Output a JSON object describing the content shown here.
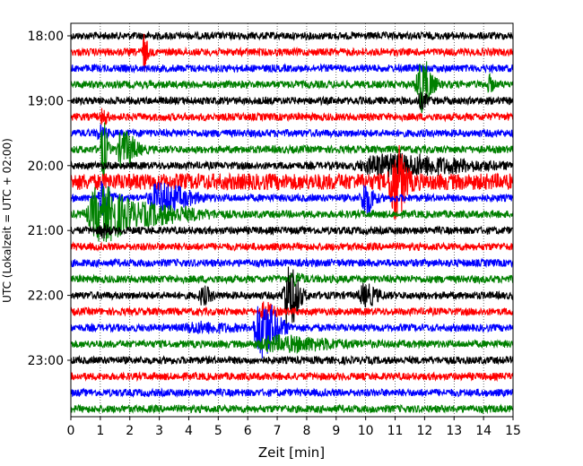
{
  "chart_data": {
    "type": "line",
    "title": "",
    "xlabel": "Zeit  [min]",
    "ylabel": "UTC (Lokalzeit = UTC + 02:00)",
    "xlim": [
      0,
      15
    ],
    "x_ticks": [
      0,
      1,
      2,
      3,
      4,
      5,
      6,
      7,
      8,
      9,
      10,
      11,
      12,
      13,
      14,
      15
    ],
    "y_tick_labels": [
      "18:00",
      "19:00",
      "20:00",
      "21:00",
      "22:00",
      "23:00"
    ],
    "trace_colors": [
      "#000000",
      "#ff0000",
      "#0000ff",
      "#008000"
    ],
    "grid": "vertical dotted at each minute",
    "row_interval_min": 15,
    "rows": [
      {
        "start": "18:00",
        "color": "#000000",
        "events": []
      },
      {
        "start": "18:15",
        "color": "#ff0000",
        "events": [
          {
            "t": 2.5,
            "amp": 1.5,
            "dur": 0.15
          }
        ]
      },
      {
        "start": "18:30",
        "color": "#0000ff",
        "events": []
      },
      {
        "start": "18:45",
        "color": "#008000",
        "events": [
          {
            "t": 11.9,
            "amp": 2.2,
            "dur": 0.5
          },
          {
            "t": 14.2,
            "amp": 0.6,
            "dur": 0.2
          }
        ]
      },
      {
        "start": "19:00",
        "color": "#000000",
        "events": [
          {
            "t": 11.9,
            "amp": 0.5,
            "dur": 0.3
          }
        ]
      },
      {
        "start": "19:15",
        "color": "#ff0000",
        "events": [
          {
            "t": 1.1,
            "amp": 0.6,
            "dur": 0.2
          }
        ]
      },
      {
        "start": "19:30",
        "color": "#0000ff",
        "events": [
          {
            "t": 1.0,
            "amp": 0.5,
            "dur": 0.3
          }
        ]
      },
      {
        "start": "19:45",
        "color": "#008000",
        "events": [
          {
            "t": 1.1,
            "amp": 2.6,
            "dur": 0.2
          },
          {
            "t": 1.8,
            "amp": 1.4,
            "dur": 0.6
          }
        ]
      },
      {
        "start": "20:00",
        "color": "#000000",
        "events": [
          {
            "t": 11.0,
            "amp": 0.8,
            "dur": 3.5
          }
        ]
      },
      {
        "start": "20:15",
        "color": "#ff0000",
        "events": [
          {
            "t": 11.0,
            "amp": 3.0,
            "dur": 0.5
          },
          {
            "t": 0,
            "amp": 0.4,
            "dur": 15
          }
        ]
      },
      {
        "start": "20:30",
        "color": "#0000ff",
        "events": [
          {
            "t": 1.1,
            "amp": 1.3,
            "dur": 0.4
          },
          {
            "t": 3.1,
            "amp": 1.1,
            "dur": 1.3
          },
          {
            "t": 10.0,
            "amp": 1.4,
            "dur": 0.4
          }
        ]
      },
      {
        "start": "20:45",
        "color": "#008000",
        "events": [
          {
            "t": 1.1,
            "amp": 2.2,
            "dur": 1.5
          },
          {
            "t": 3.0,
            "amp": 0.6,
            "dur": 2.0
          }
        ]
      },
      {
        "start": "21:00",
        "color": "#000000",
        "events": [
          {
            "t": 1.1,
            "amp": 0.4,
            "dur": 0.3
          }
        ]
      },
      {
        "start": "21:15",
        "color": "#ff0000",
        "events": []
      },
      {
        "start": "21:30",
        "color": "#0000ff",
        "events": []
      },
      {
        "start": "21:45",
        "color": "#008000",
        "events": [
          {
            "t": 7.6,
            "amp": 0.4,
            "dur": 0.4
          }
        ]
      },
      {
        "start": "22:00",
        "color": "#000000",
        "events": [
          {
            "t": 7.4,
            "amp": 2.6,
            "dur": 0.5
          },
          {
            "t": 4.5,
            "amp": 0.6,
            "dur": 0.4
          },
          {
            "t": 10.0,
            "amp": 0.8,
            "dur": 0.6
          }
        ]
      },
      {
        "start": "22:15",
        "color": "#ff0000",
        "events": [
          {
            "t": 6.6,
            "amp": 0.6,
            "dur": 0.4
          }
        ]
      },
      {
        "start": "22:30",
        "color": "#0000ff",
        "events": [
          {
            "t": 6.5,
            "amp": 2.4,
            "dur": 0.8
          },
          {
            "t": 4.4,
            "amp": 0.3,
            "dur": 1.5
          }
        ]
      },
      {
        "start": "22:45",
        "color": "#008000",
        "events": [
          {
            "t": 7.2,
            "amp": 0.5,
            "dur": 2.5
          }
        ]
      },
      {
        "start": "23:00",
        "color": "#000000",
        "events": []
      },
      {
        "start": "23:15",
        "color": "#ff0000",
        "events": []
      },
      {
        "start": "23:30",
        "color": "#0000ff",
        "events": []
      },
      {
        "start": "23:45",
        "color": "#008000",
        "events": []
      }
    ]
  }
}
